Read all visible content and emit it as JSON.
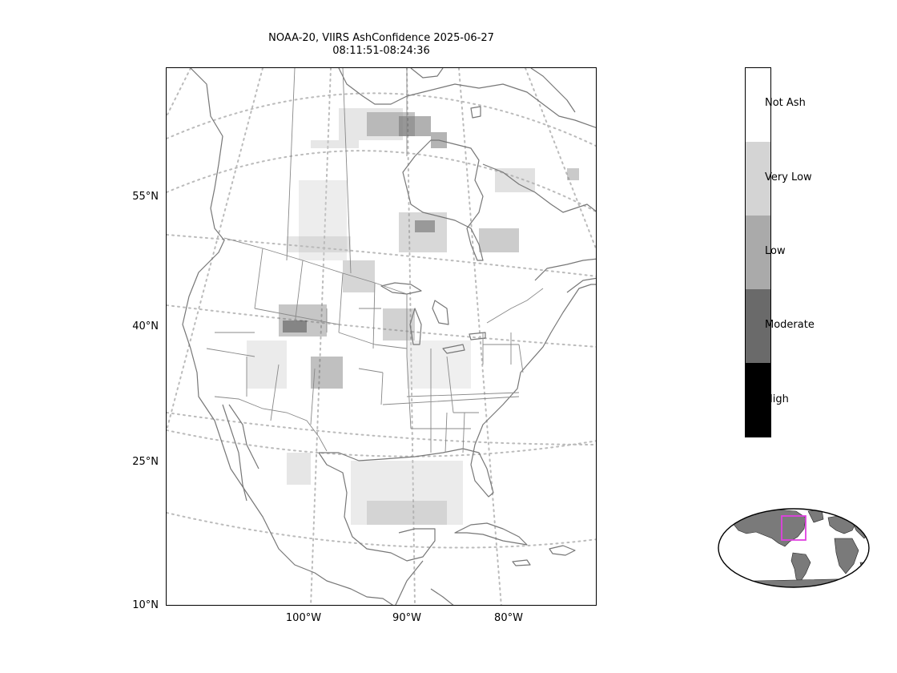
{
  "title_line1": "NOAA-20, VIIRS AshConfidence 2025-06-27",
  "title_line2": "08:11:51-08:24:36",
  "lat_ticks": [
    "55°N",
    "40°N",
    "25°N",
    "10°N"
  ],
  "lon_ticks": [
    "100°W",
    "90°W",
    "80°W"
  ],
  "colorbar": {
    "categories": [
      {
        "label": "Not Ash",
        "color": "#ffffff"
      },
      {
        "label": "Very Low",
        "color": "#d4d4d4"
      },
      {
        "label": "Low",
        "color": "#aaaaaa"
      },
      {
        "label": "Moderate",
        "color": "#6a6a6a"
      },
      {
        "label": "High",
        "color": "#000000"
      }
    ]
  },
  "colors": {
    "coastline": "#777777",
    "graticule": "#bbbbbb",
    "inset_land": "#7a7a7a",
    "inset_box": "#e040e0"
  }
}
